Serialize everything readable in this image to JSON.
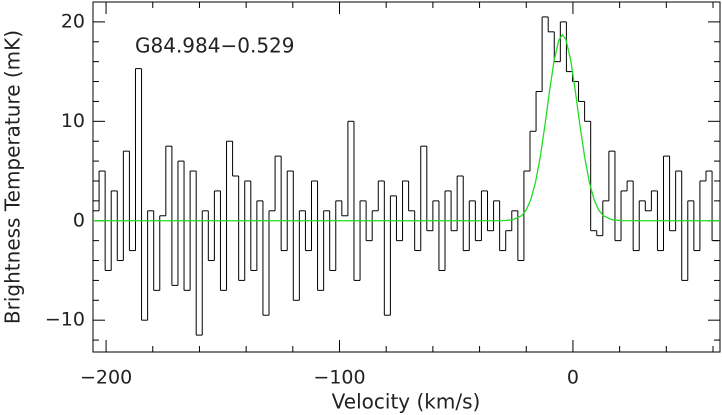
{
  "chart_data": {
    "type": "step",
    "annotation": "G84.984−0.529",
    "xlabel": "Velocity (km/s)",
    "ylabel": "Brightness Temperature (mK)",
    "xlim": [
      -205.6,
      63
    ],
    "ylim": [
      -13.2,
      22
    ],
    "xticks": [
      {
        "value": -200,
        "label": "−200"
      },
      {
        "value": -100,
        "label": "−100"
      },
      0
    ],
    "yticks": [
      {
        "value": -10,
        "label": "−10"
      },
      0,
      10,
      20
    ],
    "xminorticks": [
      -180,
      -160,
      -140,
      -120,
      -80,
      -60,
      -40,
      -20,
      20,
      40,
      60
    ],
    "yminorticks": [
      -12,
      -8,
      -6,
      -4,
      -2,
      2,
      4,
      6,
      8,
      12,
      14,
      16,
      18
    ],
    "series": [
      {
        "kind": "step",
        "color": "#000000",
        "x": [
          -204.3,
          -201.7,
          -199.1,
          -196.5,
          -193.9,
          -191.3,
          -188.7,
          -186.1,
          -183.5,
          -180.9,
          -178.3,
          -175.7,
          -173.1,
          -170.5,
          -167.9,
          -165.3,
          -162.7,
          -160.1,
          -157.5,
          -154.9,
          -152.3,
          -149.7,
          -147.1,
          -144.5,
          -141.9,
          -139.3,
          -136.7,
          -134.1,
          -131.5,
          -128.9,
          -126.3,
          -123.7,
          -121.1,
          -118.5,
          -115.9,
          -113.3,
          -110.7,
          -108.1,
          -105.5,
          -102.9,
          -100.3,
          -97.7,
          -95.1,
          -92.5,
          -89.9,
          -87.3,
          -84.7,
          -82.1,
          -79.5,
          -76.9,
          -74.3,
          -71.7,
          -69.1,
          -66.5,
          -63.9,
          -61.3,
          -58.7,
          -56.1,
          -53.5,
          -50.9,
          -48.3,
          -45.7,
          -43.1,
          -40.5,
          -37.9,
          -35.3,
          -32.7,
          -30.1,
          -27.5,
          -24.9,
          -22.3,
          -19.7,
          -17.1,
          -14.5,
          -11.9,
          -9.3,
          -6.7,
          -4.1,
          -1.5,
          1.1,
          3.7,
          6.3,
          8.9,
          11.5,
          14.1,
          16.7,
          19.3,
          21.9,
          24.5,
          27.1,
          29.7,
          32.3,
          34.9,
          37.5,
          40.1,
          42.7,
          45.3,
          47.9,
          50.5,
          53.1,
          55.7,
          58.3,
          60.9
        ],
        "values": [
          1,
          5,
          -5,
          3,
          -4,
          7,
          -3,
          15.3,
          -10,
          1,
          -7,
          0.5,
          7.5,
          -6.5,
          6,
          -7,
          5,
          -11.5,
          1,
          -4,
          3,
          -7,
          8,
          4.5,
          -6,
          4,
          -5,
          2,
          -9.5,
          1,
          6.5,
          -3,
          5,
          -8,
          1,
          -3,
          4,
          -7,
          1,
          -5,
          2,
          0.5,
          10,
          -6,
          2,
          -2,
          1,
          4,
          -9.5,
          2.5,
          -2,
          4,
          1,
          -3,
          7.5,
          -1,
          2,
          -5,
          3,
          -1,
          4.5,
          -3,
          2,
          -2,
          3,
          -1,
          2,
          -3,
          -1,
          1,
          -4,
          5,
          9,
          13,
          20.5,
          19,
          16,
          20,
          15,
          14,
          12,
          10,
          -1,
          -1.5,
          2,
          7,
          -2,
          3,
          4,
          -3,
          2,
          1,
          3,
          -3,
          6.5,
          -1,
          5,
          -6,
          2,
          -3,
          4,
          5,
          -2
        ]
      },
      {
        "kind": "line",
        "color": "#22dd22",
        "x": [
          -205.6,
          -40,
          -30,
          -26,
          -22,
          -20,
          -18,
          -16,
          -14,
          -12,
          -10,
          -8,
          -6,
          -4.5,
          -3,
          -1,
          1,
          3,
          5,
          7,
          9,
          11,
          13,
          17,
          21,
          30,
          63
        ],
        "values": [
          0,
          0,
          0.01,
          0.08,
          0.5,
          1.09,
          2.16,
          3.91,
          6.43,
          9.6,
          13.1,
          16.2,
          18.2,
          18.7,
          18.2,
          16.2,
          13.1,
          9.6,
          6.43,
          3.91,
          2.16,
          1.09,
          0.5,
          0.08,
          0.01,
          0,
          0
        ]
      }
    ]
  }
}
